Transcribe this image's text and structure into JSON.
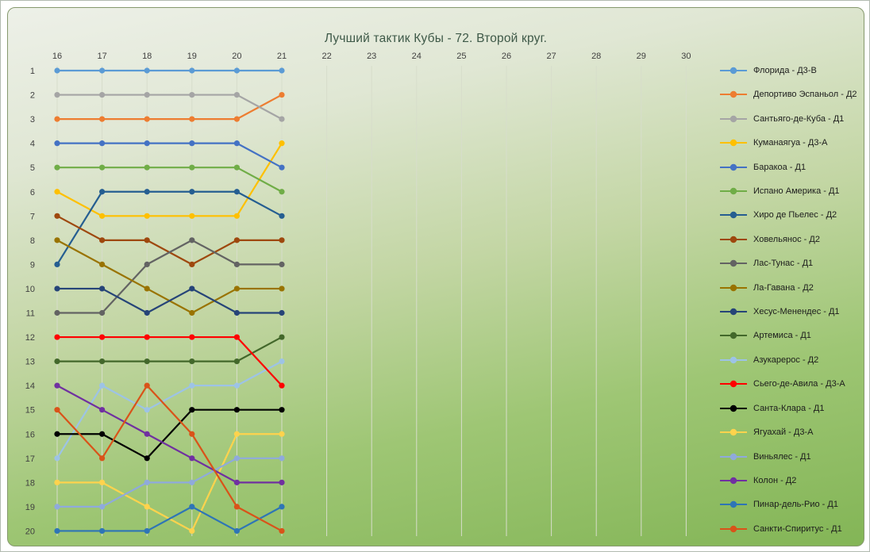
{
  "chart_data": {
    "type": "line",
    "title": "Лучший тактик Кубы - 72. Второй круг.",
    "x_range": [
      16,
      30
    ],
    "x_ticks": [
      16,
      17,
      18,
      19,
      20,
      21,
      22,
      23,
      24,
      25,
      26,
      27,
      28,
      29,
      30
    ],
    "x_plotted": [
      16,
      17,
      18,
      19,
      20,
      21
    ],
    "y_ticks": [
      1,
      2,
      3,
      4,
      5,
      6,
      7,
      8,
      9,
      10,
      11,
      12,
      13,
      14,
      15,
      16,
      17,
      18,
      19,
      20
    ],
    "y_axis_inverted": true,
    "ylabel": "",
    "xlabel": "",
    "grid": "vertical-only",
    "legend_position": "right",
    "colors": {
      "background_top": "#EDF0E8",
      "background_bottom": "#83B556",
      "gridline": "#D7DDCB",
      "tick_text": "#404040",
      "title_text": "#3E5948"
    },
    "series": [
      {
        "name": "Флорида - Д3-В",
        "color": "#5B9BD5",
        "values": [
          1,
          1,
          1,
          1,
          1,
          1
        ]
      },
      {
        "name": "Депортиво Эспаньол - Д2",
        "color": "#ED7D31",
        "values": [
          3,
          3,
          3,
          3,
          3,
          2
        ]
      },
      {
        "name": "Сантьяго-де-Куба - Д1",
        "color": "#A5A5A5",
        "values": [
          2,
          2,
          2,
          2,
          2,
          3
        ]
      },
      {
        "name": "Куманаягуа - Д3-А",
        "color": "#FFC000",
        "values": [
          6,
          7,
          7,
          7,
          7,
          4
        ]
      },
      {
        "name": "Баракоа - Д1",
        "color": "#4472C4",
        "values": [
          4,
          4,
          4,
          4,
          4,
          5
        ]
      },
      {
        "name": "Испано Америка - Д1",
        "color": "#70AD47",
        "values": [
          5,
          5,
          5,
          5,
          5,
          6
        ]
      },
      {
        "name": "Хиро де Пьелес - Д2",
        "color": "#255E91",
        "values": [
          9,
          6,
          6,
          6,
          6,
          7
        ]
      },
      {
        "name": "Ховельянос - Д2",
        "color": "#9E480E",
        "values": [
          7,
          8,
          8,
          9,
          8,
          8
        ]
      },
      {
        "name": "Лас-Тунас - Д1",
        "color": "#636363",
        "values": [
          11,
          11,
          9,
          8,
          9,
          9
        ]
      },
      {
        "name": "Ла-Гавана - Д2",
        "color": "#997300",
        "values": [
          8,
          9,
          10,
          11,
          10,
          10
        ]
      },
      {
        "name": "Хесус-Менендес - Д1",
        "color": "#264478",
        "values": [
          10,
          10,
          11,
          10,
          11,
          11
        ]
      },
      {
        "name": "Артемиса - Д1",
        "color": "#43682B",
        "values": [
          13,
          13,
          13,
          13,
          13,
          12
        ]
      },
      {
        "name": "Азукарерос - Д2",
        "color": "#9DC3E6",
        "values": [
          17,
          14,
          15,
          14,
          14,
          13
        ]
      },
      {
        "name": "Сьего-де-Авила - Д3-А",
        "color": "#FF0000",
        "values": [
          12,
          12,
          12,
          12,
          12,
          14
        ]
      },
      {
        "name": "Санта-Клара - Д1",
        "color": "#000000",
        "values": [
          16,
          16,
          17,
          15,
          15,
          15
        ]
      },
      {
        "name": "Ягуахай - Д3-А",
        "color": "#FFD34D",
        "values": [
          18,
          18,
          19,
          20,
          16,
          16
        ]
      },
      {
        "name": "Виньялес - Д1",
        "color": "#8FAADC",
        "values": [
          19,
          19,
          18,
          18,
          17,
          17
        ]
      },
      {
        "name": "Колон - Д2",
        "color": "#7030A0",
        "values": [
          14,
          15,
          16,
          17,
          18,
          18
        ]
      },
      {
        "name": "Пинар-дель-Рио - Д1",
        "color": "#2E75B6",
        "values": [
          20,
          20,
          20,
          19,
          20,
          19
        ]
      },
      {
        "name": "Санкти-Спиритус - Д1",
        "color": "#D95319",
        "values": [
          15,
          17,
          14,
          16,
          19,
          20
        ]
      }
    ]
  }
}
